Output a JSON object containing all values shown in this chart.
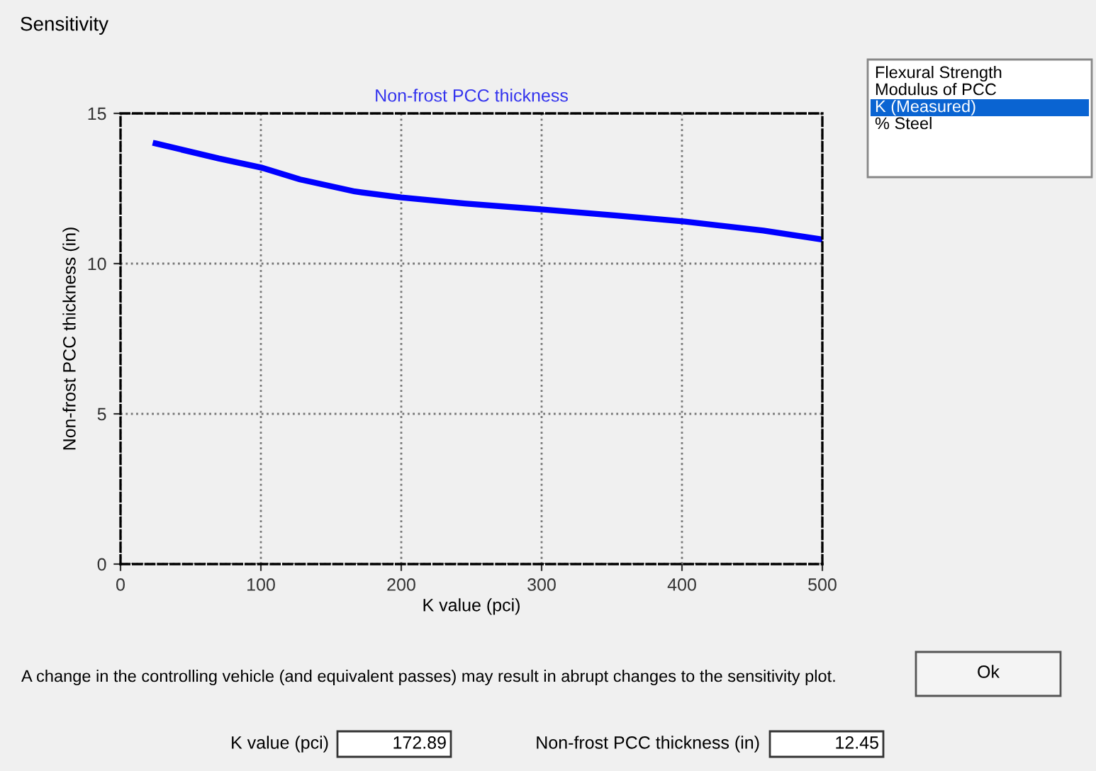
{
  "chart_data": {
    "type": "line",
    "title": "Non-frost PCC thickness",
    "xlabel": "K value (pci)",
    "ylabel": "Non-frost PCC thickness (in)",
    "x": [
      25,
      70,
      100,
      128,
      167,
      200,
      245,
      301,
      353,
      402,
      458,
      500
    ],
    "series": [
      {
        "color": "#0000ff",
        "values": [
          14.0,
          13.5,
          13.2,
          12.8,
          12.4,
          12.2,
          12.0,
          11.8,
          11.6,
          11.4,
          11.1,
          10.8
        ]
      }
    ],
    "xlim": [
      0,
      500
    ],
    "ylim": [
      0,
      15
    ],
    "xticks": [
      0,
      100,
      200,
      300,
      400,
      500
    ],
    "yticks": [
      0,
      5,
      10,
      15
    ],
    "grid": true,
    "marker": "none",
    "line_style": "solid",
    "legend": false,
    "annotations": [
      "Sensitivity",
      "Flexural Strength",
      "Modulus of PCC",
      "K (Measured)",
      "% Steel",
      "A change in the controlling vehicle (and equivalent passes) may result in abrupt changes to the sensitivity plot.",
      "Ok",
      "K value (pci)",
      "172.89",
      "Non-frost PCC thickness (in)",
      "12.45"
    ]
  }
}
